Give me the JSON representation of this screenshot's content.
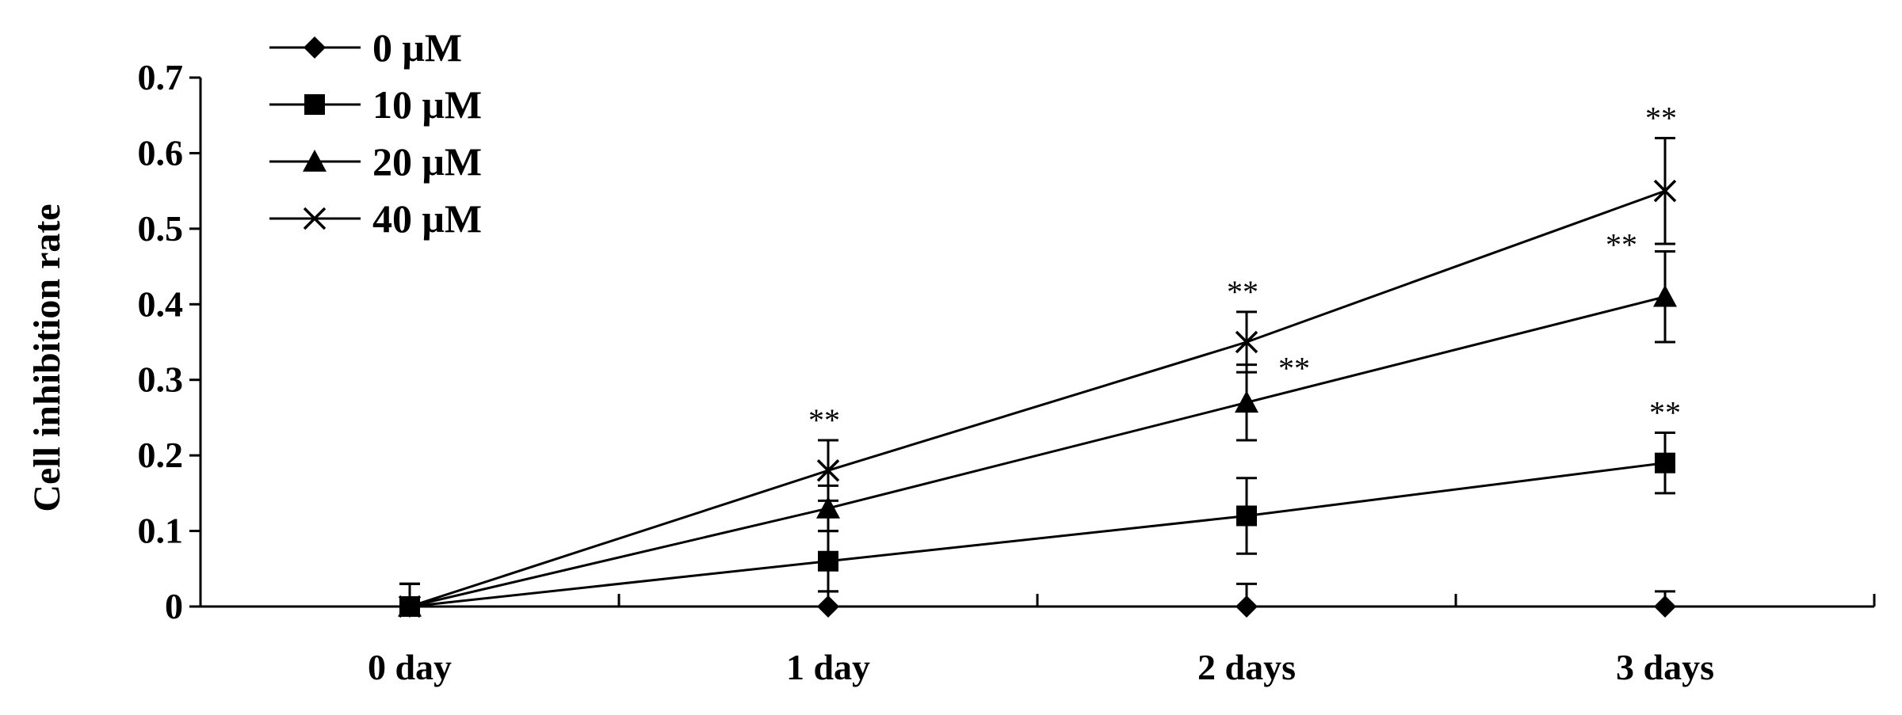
{
  "chart_data": {
    "type": "line",
    "title": "",
    "xlabel": "",
    "ylabel": "Cell inhibition rate",
    "categories": [
      "0 day",
      "1 day",
      "2 days",
      "3 days"
    ],
    "ylim": [
      0,
      0.7
    ],
    "yticks": [
      0,
      0.1,
      0.2,
      0.3,
      0.4,
      0.5,
      0.6,
      0.7
    ],
    "ytick_labels": [
      "0",
      "0.1",
      "0.2",
      "0.3",
      "0.4",
      "0.5",
      "0.6",
      "0.7"
    ],
    "grid": false,
    "legend_position": "top-left",
    "series": [
      {
        "name": "0 μM",
        "marker": "diamond",
        "values": [
          0,
          0,
          0,
          0
        ],
        "errors": [
          0.03,
          0.02,
          0.03,
          0.02
        ]
      },
      {
        "name": "10 μM",
        "marker": "square",
        "values": [
          0,
          0.06,
          0.12,
          0.19
        ],
        "errors": [
          0.03,
          0.04,
          0.05,
          0.04
        ]
      },
      {
        "name": "20 μM",
        "marker": "triangle",
        "values": [
          0,
          0.13,
          0.27,
          0.41
        ],
        "errors": [
          0.03,
          0.03,
          0.05,
          0.06
        ]
      },
      {
        "name": "40 μM",
        "marker": "cross",
        "values": [
          0,
          0.18,
          0.35,
          0.55
        ],
        "errors": [
          0.03,
          0.04,
          0.04,
          0.07
        ]
      }
    ],
    "annotations": [
      {
        "text": "**",
        "series": "40 μM",
        "category": "1 day"
      },
      {
        "text": "**",
        "series": "40 μM",
        "category": "2 days"
      },
      {
        "text": "**",
        "series": "20 μM",
        "category": "2 days"
      },
      {
        "text": "**",
        "series": "40 μM",
        "category": "3 days"
      },
      {
        "text": "**",
        "series": "20 μM",
        "category": "3 days"
      },
      {
        "text": "**",
        "series": "10 μM",
        "category": "3 days"
      }
    ]
  }
}
